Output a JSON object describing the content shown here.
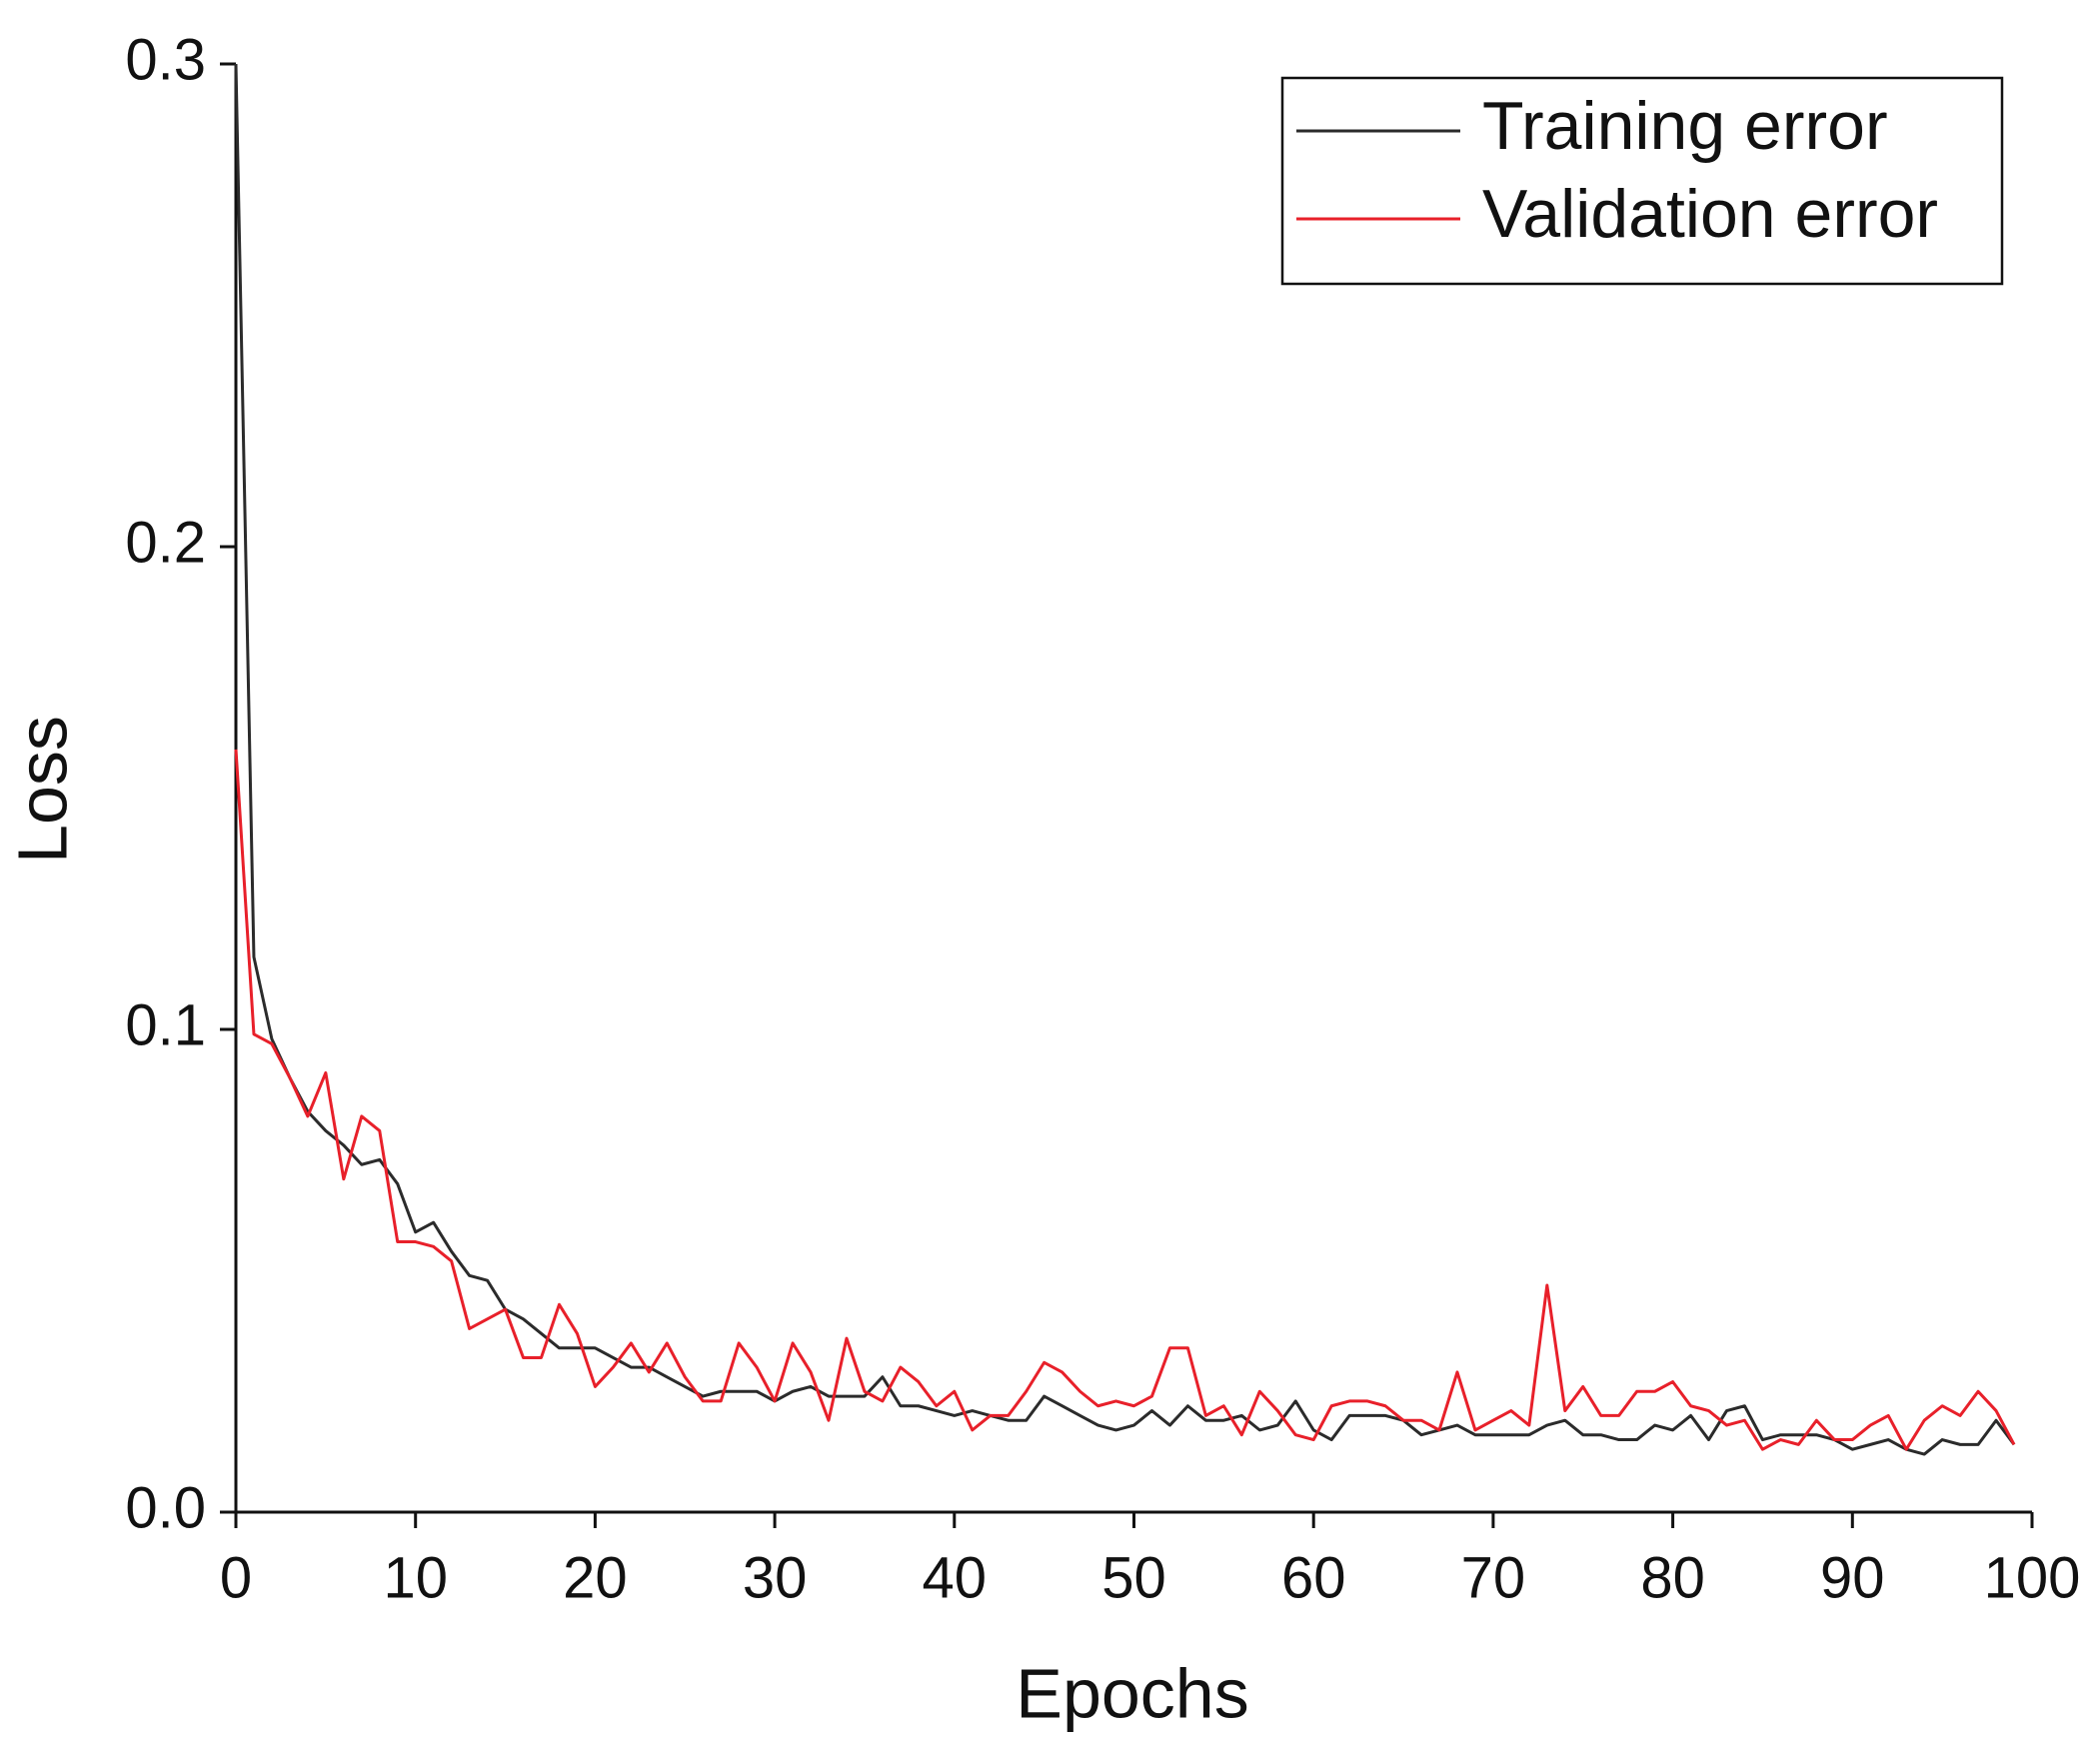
{
  "chart_data": {
    "type": "line",
    "x_label": "Epochs",
    "y_label": "Loss",
    "x": [
      0,
      1,
      2,
      3,
      4,
      5,
      6,
      7,
      8,
      9,
      10,
      11,
      12,
      13,
      14,
      15,
      16,
      17,
      18,
      19,
      20,
      21,
      22,
      23,
      24,
      25,
      26,
      27,
      28,
      29,
      30,
      31,
      32,
      33,
      34,
      35,
      36,
      37,
      38,
      39,
      40,
      41,
      42,
      43,
      44,
      45,
      46,
      47,
      48,
      49,
      50,
      51,
      52,
      53,
      54,
      55,
      56,
      57,
      58,
      59,
      60,
      61,
      62,
      63,
      64,
      65,
      66,
      67,
      68,
      69,
      70,
      71,
      72,
      73,
      74,
      75,
      76,
      77,
      78,
      79,
      80,
      81,
      82,
      83,
      84,
      85,
      86,
      87,
      88,
      89,
      90,
      91,
      92,
      93,
      94,
      95,
      96,
      97,
      98,
      99
    ],
    "series": [
      {
        "name": "Training error",
        "color": "#2b2b2b",
        "values": [
          0.3,
          0.115,
          0.098,
          0.09,
          0.083,
          0.079,
          0.076,
          0.072,
          0.073,
          0.068,
          0.058,
          0.06,
          0.054,
          0.049,
          0.048,
          0.042,
          0.04,
          0.037,
          0.034,
          0.034,
          0.034,
          0.032,
          0.03,
          0.03,
          0.028,
          0.026,
          0.024,
          0.025,
          0.025,
          0.025,
          0.023,
          0.025,
          0.026,
          0.024,
          0.024,
          0.024,
          0.028,
          0.022,
          0.022,
          0.021,
          0.02,
          0.021,
          0.02,
          0.019,
          0.019,
          0.024,
          0.022,
          0.02,
          0.018,
          0.017,
          0.018,
          0.021,
          0.018,
          0.022,
          0.019,
          0.019,
          0.02,
          0.017,
          0.018,
          0.023,
          0.017,
          0.015,
          0.02,
          0.02,
          0.02,
          0.019,
          0.016,
          0.017,
          0.018,
          0.016,
          0.016,
          0.016,
          0.016,
          0.018,
          0.019,
          0.016,
          0.016,
          0.015,
          0.015,
          0.018,
          0.017,
          0.02,
          0.015,
          0.021,
          0.022,
          0.015,
          0.016,
          0.016,
          0.016,
          0.015,
          0.013,
          0.014,
          0.015,
          0.013,
          0.012,
          0.015,
          0.014,
          0.014,
          0.019,
          0.014
        ]
      },
      {
        "name": "Validation error",
        "color": "#e8202a",
        "values": [
          0.158,
          0.099,
          0.097,
          0.09,
          0.082,
          0.091,
          0.069,
          0.082,
          0.079,
          0.056,
          0.056,
          0.055,
          0.052,
          0.038,
          0.04,
          0.042,
          0.032,
          0.032,
          0.043,
          0.037,
          0.026,
          0.03,
          0.035,
          0.029,
          0.035,
          0.028,
          0.023,
          0.023,
          0.035,
          0.03,
          0.023,
          0.035,
          0.029,
          0.019,
          0.036,
          0.025,
          0.023,
          0.03,
          0.027,
          0.022,
          0.025,
          0.017,
          0.02,
          0.02,
          0.025,
          0.031,
          0.029,
          0.025,
          0.022,
          0.023,
          0.022,
          0.024,
          0.034,
          0.034,
          0.02,
          0.022,
          0.016,
          0.025,
          0.021,
          0.016,
          0.015,
          0.022,
          0.023,
          0.023,
          0.022,
          0.019,
          0.019,
          0.017,
          0.029,
          0.017,
          0.019,
          0.021,
          0.018,
          0.047,
          0.021,
          0.026,
          0.02,
          0.02,
          0.025,
          0.025,
          0.027,
          0.022,
          0.021,
          0.018,
          0.019,
          0.013,
          0.015,
          0.014,
          0.019,
          0.015,
          0.015,
          0.018,
          0.02,
          0.013,
          0.019,
          0.022,
          0.02,
          0.025,
          0.021,
          0.014
        ]
      }
    ],
    "xlim": [
      0,
      100
    ],
    "xticks": [
      0,
      10,
      20,
      30,
      40,
      50,
      60,
      70,
      80,
      90,
      100
    ],
    "ylim": [
      0,
      0.3
    ],
    "yticks": [
      {
        "value": 0,
        "label": "0.0"
      },
      0.1,
      0.2,
      0.3
    ],
    "legend": "upper right"
  }
}
